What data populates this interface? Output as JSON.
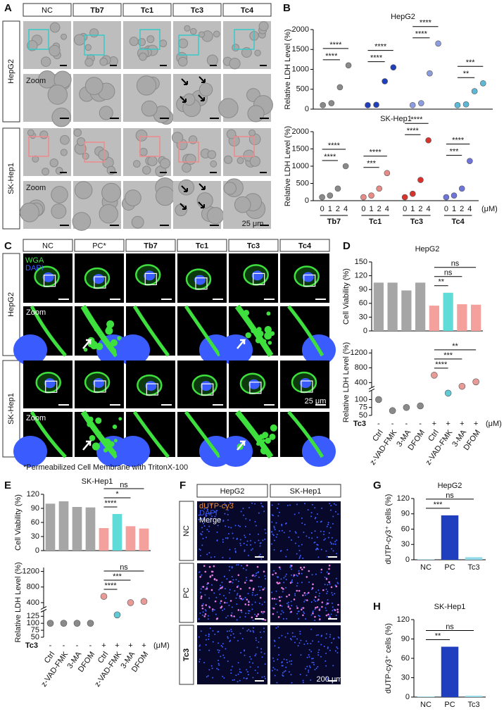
{
  "panel_letters": [
    "A",
    "B",
    "C",
    "D",
    "E",
    "F",
    "G",
    "H"
  ],
  "panel_a": {
    "columns": [
      "NC",
      "Tb7",
      "Tc1",
      "Tc3",
      "Tc4"
    ],
    "rows": [
      "HepG2",
      "SK-Hep1"
    ],
    "zoom": "Zoom",
    "scale_bar": "25 μm"
  },
  "panel_c": {
    "columns": [
      "NC",
      "PC*",
      "Tb7",
      "Tc1",
      "Tc3",
      "Tc4"
    ],
    "rows": [
      "HepG2",
      "SK-Hep1"
    ],
    "stains": [
      "WGA",
      "DAPI"
    ],
    "stain_colors": [
      "#3ee03e",
      "#3a5cff"
    ],
    "zoom": "Zoom",
    "scale_bar": "25 μm",
    "footnote": "*Permeabilized Cell Membrane with TritonX-100"
  },
  "panel_f": {
    "columns": [
      "HepG2",
      "SK-Hep1"
    ],
    "rows": [
      "NC",
      "PC",
      "Tc3"
    ],
    "stains": [
      "dUTP-cy3",
      "DAPI",
      "Merge"
    ],
    "stain_colors": [
      "#f08a2a",
      "#3a5cff",
      "#ffffff"
    ],
    "scale_bar": "200 μm"
  },
  "chart_data": [
    {
      "type": "scatter",
      "title": "HepG2",
      "y_label": "Relative LDH Level (%)",
      "ylim": [
        0,
        2000
      ],
      "yticks": [
        0,
        500,
        1000,
        1500,
        2000
      ],
      "series": [
        {
          "color": "#8a8a8a",
          "values": [
            100,
            150,
            550,
            1100
          ]
        },
        {
          "color": "#1f3fbf",
          "values": [
            100,
            110,
            700,
            1050
          ]
        },
        {
          "color": "#8c9ce0",
          "values": [
            100,
            150,
            900,
            1650
          ]
        },
        {
          "color": "#5cb8d6",
          "values": [
            100,
            120,
            450,
            650
          ]
        }
      ],
      "annotations": [
        "****",
        "****",
        "****",
        "****",
        "****",
        "****",
        "***",
        "**"
      ]
    },
    {
      "type": "scatter",
      "title": "SK-Hep1",
      "y_label": "Relative LDH Level (%)",
      "ylim": [
        0,
        2000
      ],
      "yticks": [
        0,
        500,
        1000,
        1500,
        2000
      ],
      "categories": [
        "0",
        "1",
        "2",
        "4"
      ],
      "x_unit": "(μM)",
      "series": [
        {
          "name": "Tb7",
          "color": "#8a8a8a",
          "values": [
            100,
            150,
            350,
            1000
          ]
        },
        {
          "name": "Tc1",
          "color": "#e88a86",
          "values": [
            100,
            150,
            350,
            800
          ]
        },
        {
          "name": "Tc3",
          "color": "#d8322c",
          "values": [
            100,
            200,
            600,
            1750
          ]
        },
        {
          "name": "Tc4",
          "color": "#6f74d8",
          "values": [
            100,
            150,
            350,
            1150
          ]
        }
      ],
      "annotations": [
        "****",
        "****",
        "****",
        "***",
        "****",
        "****",
        "****",
        "***"
      ]
    },
    {
      "type": "bar",
      "title": "HepG2",
      "y_label": "Cell Viability (%)",
      "ylim": [
        0,
        150
      ],
      "yticks": [
        0,
        30,
        60,
        90,
        120,
        150
      ],
      "values": [
        105,
        105,
        88,
        105,
        55,
        83,
        58,
        57
      ],
      "colors": [
        "#a6a6a6",
        "#a6a6a6",
        "#a6a6a6",
        "#a6a6a6",
        "#f4a09c",
        "#5fdcd8",
        "#f4a09c",
        "#f4a09c"
      ],
      "annotations": [
        "ns",
        "ns",
        "**"
      ]
    },
    {
      "type": "strip",
      "y_label": "Relative LDH Level (%)",
      "ylim": [
        50,
        1300
      ],
      "ybreak": [
        125,
        300
      ],
      "yticks": [
        50,
        75,
        100,
        400,
        800,
        1200
      ],
      "categories": [
        "Ctrl",
        "z-VAD-FMK",
        "3-MA",
        "DFOM",
        "Ctrl",
        "z-VAD-FMK",
        "3-MA",
        "DFOM"
      ],
      "values": [
        100,
        65,
        75,
        80,
        600,
        120,
        300,
        420
      ],
      "colors": [
        "#8a8a8a",
        "#8a8a8a",
        "#8a8a8a",
        "#8a8a8a",
        "#e89a96",
        "#5fc9d6",
        "#e89a96",
        "#e89a96"
      ],
      "treatment": {
        "label": "Tc3",
        "levels": [
          "-",
          "-",
          "-",
          "-",
          "+",
          "+",
          "+",
          "+"
        ]
      },
      "x_unit": "(μM)",
      "annotations": [
        "**",
        "***",
        "****"
      ]
    },
    {
      "type": "bar",
      "title": "SK-Hep1",
      "y_label": "Cell Viability (%)",
      "ylim": [
        0,
        120
      ],
      "yticks": [
        0,
        30,
        60,
        90,
        120
      ],
      "values": [
        100,
        105,
        93,
        92,
        48,
        78,
        52,
        47
      ],
      "colors": [
        "#a6a6a6",
        "#a6a6a6",
        "#a6a6a6",
        "#a6a6a6",
        "#f4a09c",
        "#5fdcd8",
        "#f4a09c",
        "#f4a09c"
      ],
      "annotations": [
        "ns",
        "*",
        "****"
      ]
    },
    {
      "type": "strip",
      "y_label": "Relative LDH Level (%)",
      "ylim": [
        50,
        1300
      ],
      "ybreak": [
        140,
        300
      ],
      "yticks": [
        50,
        75,
        100,
        125,
        400,
        800,
        1200
      ],
      "categories": [
        "Ctrl",
        "z-VAD-FMK",
        "3-MA",
        "DFOM",
        "Ctrl",
        "z-VAD-FMK",
        "3-MA",
        "DFOM"
      ],
      "values": [
        100,
        100,
        100,
        100,
        560,
        130,
        400,
        430
      ],
      "colors": [
        "#8a8a8a",
        "#8a8a8a",
        "#8a8a8a",
        "#8a8a8a",
        "#e89a96",
        "#5fc9d6",
        "#e89a96",
        "#e89a96"
      ],
      "treatment": {
        "label": "Tc3",
        "levels": [
          "-",
          "-",
          "-",
          "-",
          "+",
          "+",
          "+",
          "+"
        ]
      },
      "x_unit": "(μM)",
      "annotations": [
        "ns",
        "***",
        "****"
      ]
    },
    {
      "type": "bar",
      "title": "HepG2",
      "y_label": "dUTP-cy3⁺ cells (%)",
      "ylim": [
        0,
        120
      ],
      "yticks": [
        0,
        30,
        60,
        90,
        120
      ],
      "categories": [
        "NC",
        "PC",
        "Tc3"
      ],
      "values": [
        1,
        87,
        5
      ],
      "colors": [
        "#9fdcef",
        "#1f3fbf",
        "#8fd9e8"
      ],
      "annotations": [
        "***",
        "ns"
      ]
    },
    {
      "type": "bar",
      "title": "SK-Hep1",
      "y_label": "dUTP-cy3⁺ cells (%)",
      "ylim": [
        0,
        120
      ],
      "yticks": [
        0,
        30,
        60,
        90,
        120
      ],
      "categories": [
        "NC",
        "PC",
        "Tc3"
      ],
      "values": [
        1,
        78,
        2
      ],
      "colors": [
        "#9fdcef",
        "#1f3fbf",
        "#8fd9e8"
      ],
      "annotations": [
        "**",
        "ns"
      ]
    }
  ]
}
